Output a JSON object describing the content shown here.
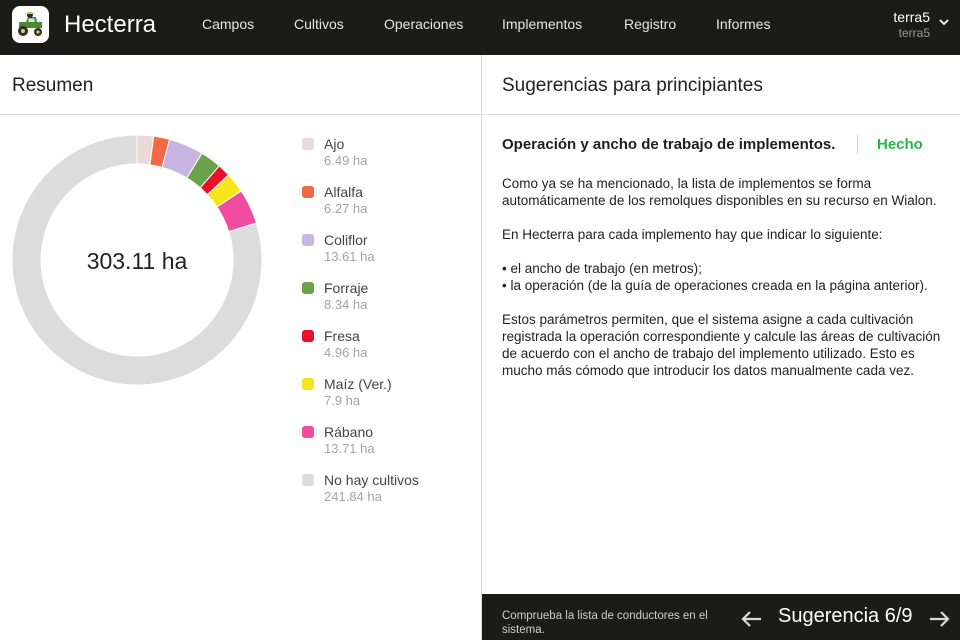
{
  "app": {
    "brand": "Hecterra",
    "logo_icon": "tractor-icon"
  },
  "nav": {
    "items": [
      {
        "label": "Campos"
      },
      {
        "label": "Cultivos"
      },
      {
        "label": "Operaciones"
      },
      {
        "label": "Implementos"
      },
      {
        "label": "Registro"
      },
      {
        "label": "Informes"
      }
    ]
  },
  "user": {
    "name": "terra5",
    "account": "terra5"
  },
  "summary": {
    "title": "Resumen",
    "total": "303.11 ha",
    "legend": [
      {
        "name": "Ajo",
        "value": "6.49 ha",
        "area": 6.49,
        "color": "#e9d9d9"
      },
      {
        "name": "Alfalfa",
        "value": "6.27 ha",
        "area": 6.27,
        "color": "#f26a45"
      },
      {
        "name": "Coliflor",
        "value": "13.61 ha",
        "area": 13.61,
        "color": "#c7b4e3"
      },
      {
        "name": "Forraje",
        "value": "8.34 ha",
        "area": 8.34,
        "color": "#6aa349"
      },
      {
        "name": "Fresa",
        "value": "4.96 ha",
        "area": 4.96,
        "color": "#e8112d"
      },
      {
        "name": "Maíz (Ver.)",
        "value": "7.9 ha",
        "area": 7.9,
        "color": "#f7e51c"
      },
      {
        "name": "Rábano",
        "value": "13.71 ha",
        "area": 13.71,
        "color": "#f24ca1"
      },
      {
        "name": "No hay cultivos",
        "value": "241.84 ha",
        "area": 241.84,
        "color": "#dcdcdc"
      }
    ]
  },
  "tips": {
    "title": "Sugerencias para principiantes",
    "heading": "Operación y ancho de trabajo de implementos.",
    "done_label": "Hecho",
    "p1": "Como ya se ha mencionado, la lista de implementos se forma automáticamente de los remolques disponibles en su recurso en Wialon.",
    "p2": "En Hecterra para cada implemento hay que indicar lo siguiente:",
    "b1": "• el ancho de trabajo (en metros);",
    "b2": "• la operación (de la guía de operaciones creada en la página anterior).",
    "p3": "Estos parámetros permiten, que el sistema asigne a cada cultivación registrada la operación correspondiente y calcule las áreas de cultivación de acuerdo con el ancho de trabajo del implemento utilizado. Esto es mucho más cómodo que introducir los datos manualmente cada vez."
  },
  "footer": {
    "next_tip_link": "Comprueba la lista de conductores en el sistema.",
    "counter": "Sugerencia 6/9"
  }
}
